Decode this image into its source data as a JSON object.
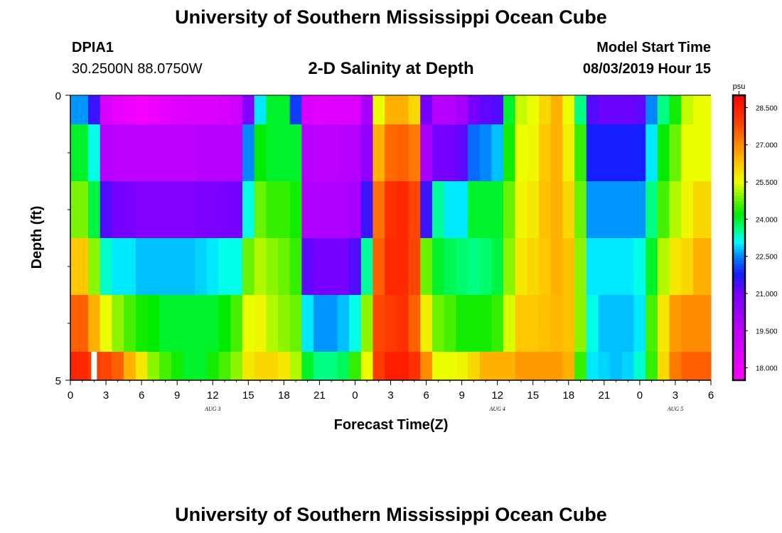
{
  "page": {
    "title_top": "University of Southern Mississippi Ocean Cube",
    "title_bottom": "University of Southern Mississippi Ocean Cube",
    "station_id": "DPIA1",
    "station_coords": "30.2500N 88.0750W",
    "model_start_label": "Model Start Time",
    "model_start_value": "08/03/2019 Hour 15"
  },
  "chart_data": {
    "type": "heatmap",
    "title": "2-D Salinity at Depth",
    "xlabel": "Forecast Time(Z)",
    "ylabel": "Depth (ft)",
    "x_tick_labels": [
      "0",
      "3",
      "6",
      "9",
      "12",
      "15",
      "18",
      "21",
      "0",
      "3",
      "6",
      "9",
      "12",
      "15",
      "18",
      "21",
      "0",
      "3",
      "6"
    ],
    "x_hours": [
      0,
      3,
      6,
      9,
      12,
      15,
      18,
      21,
      24,
      27,
      30,
      33,
      36,
      39,
      42,
      45,
      48,
      51,
      54
    ],
    "day_labels": [
      {
        "label": "AUG 3",
        "hour": 12
      },
      {
        "label": "AUG 4",
        "hour": 36
      },
      {
        "label": "AUG 5",
        "hour": 51
      }
    ],
    "xlim": [
      0,
      54
    ],
    "y_tick_labels": [
      "0",
      "5"
    ],
    "ylim": [
      0,
      5
    ],
    "depth_layers_ft": [
      0.0,
      0.5,
      1.5,
      2.5,
      3.5,
      4.5
    ],
    "colorbar": {
      "unit": "psu",
      "tick_labels": [
        "18.000",
        "19.500",
        "21.000",
        "22.500",
        "24.000",
        "25.500",
        "27.000",
        "28.500"
      ],
      "range": [
        17.5,
        29.0
      ]
    },
    "hours": [
      0,
      1,
      2,
      3,
      4,
      5,
      6,
      7,
      8,
      9,
      10,
      11,
      12,
      13,
      14,
      15,
      16,
      17,
      18,
      19,
      20,
      21,
      22,
      23,
      24,
      25,
      26,
      27,
      28,
      29,
      30,
      31,
      32,
      33,
      34,
      35,
      36,
      37,
      38,
      39,
      40,
      41,
      42,
      43,
      44,
      45,
      46,
      47,
      48,
      49,
      50,
      51,
      52,
      53,
      54
    ],
    "salinity_psu": [
      [
        22.6,
        22.6,
        21.5,
        18.7,
        18.2,
        18.0,
        17.8,
        18.0,
        18.3,
        18.5,
        18.6,
        18.6,
        18.6,
        18.8,
        19.0,
        20.8,
        23.0,
        24.0,
        24.0,
        22.0,
        18.6,
        18.4,
        18.5,
        18.5,
        18.6,
        20.0,
        25.5,
        26.5,
        26.5,
        26.0,
        21.0,
        19.6,
        19.7,
        20.0,
        21.0,
        21.2,
        21.3,
        24.0,
        25.3,
        25.5,
        26.0,
        26.5,
        25.5,
        23.6,
        21.3,
        21.1,
        21.1,
        21.1,
        21.2,
        22.5,
        23.6,
        24.3,
        25.3,
        25.5,
        25.5
      ],
      [
        24.0,
        24.0,
        23.2,
        19.7,
        19.5,
        19.5,
        19.5,
        19.5,
        19.5,
        19.5,
        19.5,
        19.6,
        19.6,
        19.6,
        19.7,
        22.5,
        24.2,
        24.0,
        24.0,
        24.0,
        19.6,
        19.5,
        19.5,
        19.6,
        19.7,
        20.5,
        26.5,
        27.4,
        27.5,
        27.2,
        20.0,
        21.0,
        21.0,
        21.2,
        22.3,
        22.5,
        22.8,
        24.3,
        25.5,
        25.6,
        26.2,
        26.5,
        25.7,
        24.5,
        21.8,
        21.8,
        21.8,
        21.8,
        21.8,
        23.0,
        24.2,
        24.8,
        25.5,
        25.5,
        25.5
      ],
      [
        24.9,
        24.9,
        23.9,
        21.3,
        21.0,
        21.0,
        20.8,
        20.8,
        20.8,
        20.8,
        20.8,
        20.9,
        20.9,
        21.0,
        21.0,
        23.2,
        24.8,
        24.5,
        24.5,
        24.3,
        19.8,
        19.8,
        19.8,
        19.8,
        20.0,
        21.5,
        27.3,
        28.2,
        28.3,
        27.8,
        21.5,
        23.5,
        23.0,
        23.0,
        24.0,
        24.0,
        24.0,
        24.8,
        25.6,
        25.8,
        26.3,
        26.5,
        26.0,
        24.8,
        22.6,
        22.6,
        22.6,
        22.6,
        22.6,
        23.6,
        24.6,
        25.2,
        25.6,
        26.0,
        26.0
      ],
      [
        26.2,
        26.2,
        25.0,
        23.3,
        23.0,
        23.0,
        22.8,
        22.8,
        22.8,
        22.8,
        22.8,
        22.9,
        23.0,
        23.2,
        23.2,
        24.8,
        25.2,
        25.0,
        24.8,
        24.5,
        21.2,
        21.0,
        21.0,
        21.0,
        21.3,
        23.5,
        27.5,
        28.3,
        28.3,
        27.8,
        24.8,
        24.0,
        23.8,
        23.7,
        23.6,
        23.7,
        23.9,
        25.0,
        25.8,
        26.0,
        26.2,
        26.5,
        26.3,
        25.0,
        23.0,
        23.0,
        23.0,
        23.0,
        23.2,
        24.0,
        25.2,
        25.8,
        26.0,
        26.5,
        26.5
      ],
      [
        27.5,
        27.5,
        26.5,
        25.5,
        25.0,
        24.6,
        24.3,
        24.2,
        24.0,
        24.0,
        24.0,
        24.0,
        24.0,
        24.2,
        24.6,
        25.5,
        25.6,
        25.2,
        25.0,
        24.8,
        23.0,
        22.6,
        22.6,
        22.8,
        23.2,
        25.0,
        27.8,
        28.0,
        28.2,
        27.5,
        25.7,
        24.8,
        24.6,
        24.3,
        24.3,
        24.3,
        24.5,
        25.4,
        26.2,
        26.2,
        26.3,
        26.4,
        26.3,
        25.0,
        23.2,
        22.8,
        22.8,
        22.8,
        23.0,
        24.6,
        25.8,
        26.8,
        27.0,
        27.0,
        27.0
      ],
      [
        28.4,
        28.3,
        28.0,
        27.8,
        27.5,
        26.5,
        25.8,
        25.0,
        24.6,
        24.3,
        24.0,
        24.0,
        24.3,
        24.6,
        25.0,
        25.8,
        26.0,
        26.0,
        25.8,
        25.2,
        24.0,
        23.6,
        23.6,
        23.8,
        24.5,
        25.5,
        28.0,
        28.5,
        28.5,
        28.2,
        27.0,
        25.5,
        25.5,
        25.6,
        26.0,
        26.5,
        26.5,
        26.5,
        26.8,
        26.8,
        26.8,
        26.8,
        26.5,
        24.5,
        23.0,
        22.9,
        22.8,
        22.9,
        23.3,
        24.5,
        26.0,
        27.2,
        27.5,
        27.5,
        27.5
      ]
    ],
    "annotations": [
      {
        "type": "white-marker",
        "hour": 2.0,
        "depth_ft": 4.5
      }
    ]
  }
}
